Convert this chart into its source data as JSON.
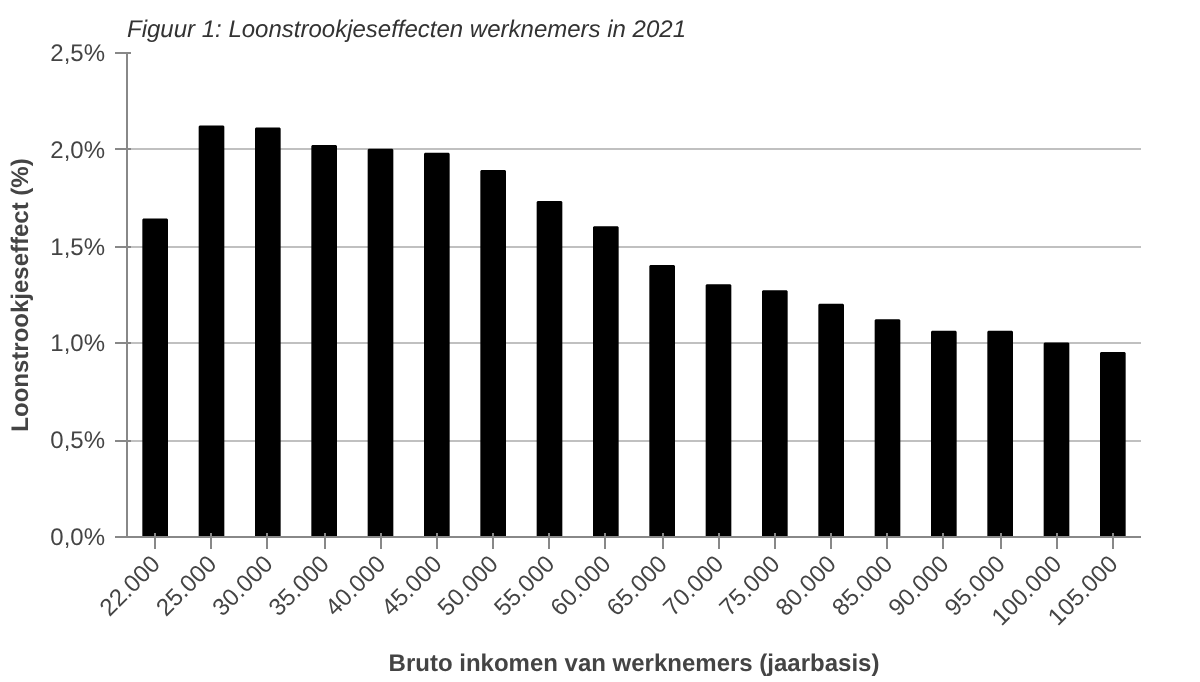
{
  "chart_data": {
    "type": "bar",
    "title": "Figuur 1: Loonstrookjeseffecten werknemers in 2021",
    "xlabel": "Bruto inkomen van werknemers (jaarbasis)",
    "ylabel": "Loonstrookjeseffect (%)",
    "categories": [
      "22.000",
      "25.000",
      "30.000",
      "35.000",
      "40.000",
      "45.000",
      "50.000",
      "55.000",
      "60.000",
      "65.000",
      "70.000",
      "75.000",
      "80.000",
      "85.000",
      "90.000",
      "95.000",
      "100.000",
      "105.000"
    ],
    "values": [
      1.64,
      2.12,
      2.11,
      2.02,
      2.0,
      1.98,
      1.89,
      1.73,
      1.6,
      1.4,
      1.3,
      1.27,
      1.2,
      1.12,
      1.06,
      1.06,
      1.0,
      0.95
    ],
    "color": "#000000",
    "ylim": [
      0,
      2.5
    ],
    "yticks": [
      {
        "value": 0,
        "label": "0,0%"
      },
      {
        "value": 0.5,
        "label": "0,5%"
      },
      {
        "value": 1.0,
        "label": "1,0%"
      },
      {
        "value": 1.5,
        "label": "1,5%"
      },
      {
        "value": 2.0,
        "label": "2,0%"
      },
      {
        "value": 2.5,
        "label": "2,5%"
      }
    ],
    "grid": "y"
  }
}
